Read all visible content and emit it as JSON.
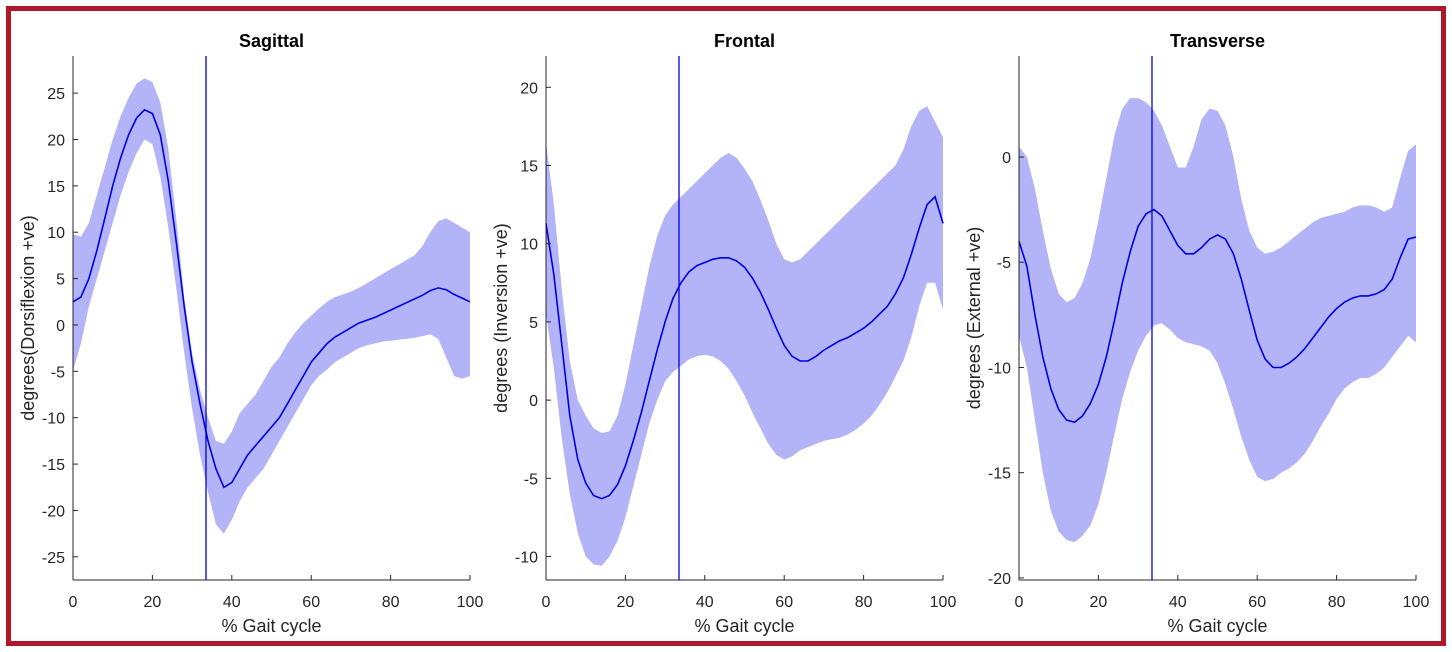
{
  "colors": {
    "frame": "#b0182a",
    "band": "#b3b3f8",
    "line": "#0000e0",
    "axis": "#262626"
  },
  "chart_data": [
    {
      "type": "line",
      "title": "Sagittal",
      "xlabel": "% Gait cycle",
      "ylabel": "degrees(Dorsiflexion +ve)",
      "xlim": [
        0,
        100
      ],
      "ylim": [
        -27.5,
        29
      ],
      "xticks": [
        0,
        20,
        40,
        60,
        80,
        100
      ],
      "yticks": [
        -25,
        -20,
        -15,
        -10,
        -5,
        0,
        5,
        10,
        15,
        20,
        25
      ],
      "vline": 33.5,
      "grid": false,
      "series": [
        {
          "x": [
            0,
            2,
            4,
            6,
            8,
            10,
            12,
            14,
            16,
            18,
            20,
            22,
            24,
            26,
            28,
            30,
            32,
            34,
            36,
            38,
            40,
            42,
            44,
            46,
            48,
            50,
            52,
            54,
            56,
            58,
            60,
            62,
            64,
            66,
            68,
            70,
            72,
            74,
            76,
            78,
            80,
            82,
            84,
            86,
            88,
            90,
            92,
            94,
            96,
            98,
            100
          ],
          "mean": [
            2.5,
            3.0,
            5.0,
            8.0,
            11.5,
            15.0,
            18.0,
            20.5,
            22.3,
            23.2,
            22.8,
            20.5,
            15.5,
            9.0,
            2.0,
            -4.0,
            -8.5,
            -12.5,
            -15.5,
            -17.5,
            -17.0,
            -15.5,
            -14.0,
            -13.0,
            -12.0,
            -11.0,
            -10.0,
            -8.5,
            -7.0,
            -5.5,
            -4.0,
            -3.0,
            -2.0,
            -1.3,
            -0.8,
            -0.3,
            0.2,
            0.5,
            0.8,
            1.2,
            1.6,
            2.0,
            2.4,
            2.8,
            3.2,
            3.7,
            4.0,
            3.8,
            3.3,
            2.9,
            2.5
          ],
          "upper": [
            9.8,
            9.5,
            11.0,
            14.0,
            17.0,
            20.0,
            22.5,
            24.5,
            26.0,
            26.6,
            26.2,
            24.0,
            19.0,
            11.5,
            3.0,
            -3.0,
            -7.0,
            -10.0,
            -12.5,
            -12.8,
            -11.5,
            -9.5,
            -8.5,
            -7.5,
            -6.0,
            -4.5,
            -3.5,
            -2.0,
            -0.8,
            0.2,
            1.0,
            1.8,
            2.5,
            3.0,
            3.3,
            3.6,
            4.0,
            4.5,
            5.0,
            5.5,
            6.0,
            6.5,
            7.0,
            7.5,
            8.5,
            10.0,
            11.2,
            11.5,
            11.0,
            10.5,
            10.0
          ],
          "lower": [
            -5.0,
            -2.0,
            2.0,
            5.0,
            8.0,
            11.0,
            14.0,
            16.5,
            18.5,
            20.0,
            19.5,
            16.0,
            10.5,
            4.0,
            -3.0,
            -9.0,
            -14.0,
            -18.0,
            -21.5,
            -22.5,
            -21.0,
            -19.0,
            -17.5,
            -16.5,
            -15.5,
            -14.0,
            -12.5,
            -11.0,
            -9.5,
            -8.0,
            -6.5,
            -5.5,
            -4.8,
            -4.0,
            -3.5,
            -3.0,
            -2.5,
            -2.2,
            -2.0,
            -1.8,
            -1.7,
            -1.6,
            -1.5,
            -1.4,
            -1.2,
            -1.0,
            -1.5,
            -3.5,
            -5.5,
            -5.8,
            -5.5
          ]
        }
      ]
    },
    {
      "type": "line",
      "title": "Frontal",
      "xlabel": "% Gait cycle",
      "ylabel": "degrees (Inversion +ve)",
      "xlim": [
        0,
        100
      ],
      "ylim": [
        -11.5,
        22
      ],
      "xticks": [
        0,
        20,
        40,
        60,
        80,
        100
      ],
      "yticks": [
        -10,
        -5,
        0,
        5,
        10,
        15,
        20
      ],
      "vline": 33.5,
      "grid": false,
      "series": [
        {
          "x": [
            0,
            2,
            4,
            6,
            8,
            10,
            12,
            14,
            16,
            18,
            20,
            22,
            24,
            26,
            28,
            30,
            32,
            34,
            36,
            38,
            40,
            42,
            44,
            46,
            48,
            50,
            52,
            54,
            56,
            58,
            60,
            62,
            64,
            66,
            68,
            70,
            72,
            74,
            76,
            78,
            80,
            82,
            84,
            86,
            88,
            90,
            92,
            94,
            96,
            98,
            100
          ],
          "mean": [
            11.3,
            8.0,
            3.5,
            -1.0,
            -3.8,
            -5.3,
            -6.1,
            -6.3,
            -6.1,
            -5.4,
            -4.2,
            -2.6,
            -0.8,
            1.2,
            3.2,
            5.0,
            6.5,
            7.5,
            8.2,
            8.6,
            8.8,
            9.0,
            9.1,
            9.1,
            8.9,
            8.5,
            7.8,
            6.9,
            5.8,
            4.6,
            3.5,
            2.8,
            2.5,
            2.5,
            2.8,
            3.2,
            3.5,
            3.8,
            4.0,
            4.3,
            4.6,
            5.0,
            5.5,
            6.0,
            6.8,
            7.8,
            9.3,
            11.0,
            12.5,
            13.0,
            11.3
          ],
          "upper": [
            16.5,
            12.5,
            7.0,
            2.5,
            0.0,
            -1.0,
            -1.8,
            -2.1,
            -2.0,
            -1.0,
            1.0,
            3.5,
            6.0,
            8.5,
            10.5,
            11.8,
            12.5,
            13.0,
            13.5,
            14.0,
            14.5,
            15.0,
            15.5,
            15.8,
            15.5,
            14.8,
            14.0,
            12.8,
            11.5,
            10.0,
            9.0,
            8.8,
            9.0,
            9.5,
            10.0,
            10.5,
            11.0,
            11.5,
            12.0,
            12.5,
            13.0,
            13.5,
            14.0,
            14.5,
            15.0,
            16.0,
            17.5,
            18.5,
            18.8,
            17.8,
            16.8
          ],
          "lower": [
            5.5,
            2.0,
            -2.5,
            -6.0,
            -8.5,
            -10.0,
            -10.5,
            -10.6,
            -10.0,
            -9.0,
            -7.5,
            -5.5,
            -3.5,
            -1.5,
            0.0,
            1.2,
            1.8,
            2.2,
            2.6,
            2.8,
            2.9,
            2.8,
            2.5,
            2.0,
            1.2,
            0.3,
            -0.8,
            -1.8,
            -2.8,
            -3.5,
            -3.8,
            -3.6,
            -3.2,
            -3.0,
            -2.8,
            -2.6,
            -2.5,
            -2.4,
            -2.2,
            -1.9,
            -1.5,
            -1.0,
            -0.3,
            0.5,
            1.5,
            2.5,
            4.0,
            6.0,
            7.5,
            7.5,
            5.8
          ]
        }
      ]
    },
    {
      "type": "line",
      "title": "Transverse",
      "xlabel": "% Gait cycle",
      "ylabel": "degrees (External +ve)",
      "xlim": [
        0,
        100
      ],
      "ylim": [
        -20.1,
        4.8
      ],
      "xticks": [
        0,
        20,
        40,
        60,
        80,
        100
      ],
      "yticks": [
        -20,
        -15,
        -10,
        -5,
        0
      ],
      "vline": 33.5,
      "grid": false,
      "series": [
        {
          "x": [
            0,
            2,
            4,
            6,
            8,
            10,
            12,
            14,
            16,
            18,
            20,
            22,
            24,
            26,
            28,
            30,
            32,
            34,
            36,
            38,
            40,
            42,
            44,
            46,
            48,
            50,
            52,
            54,
            56,
            58,
            60,
            62,
            64,
            66,
            68,
            70,
            72,
            74,
            76,
            78,
            80,
            82,
            84,
            86,
            88,
            90,
            92,
            94,
            96,
            98,
            100
          ],
          "mean": [
            -4.0,
            -5.2,
            -7.5,
            -9.5,
            -11.0,
            -12.0,
            -12.5,
            -12.6,
            -12.3,
            -11.7,
            -10.8,
            -9.5,
            -7.8,
            -6.0,
            -4.5,
            -3.3,
            -2.7,
            -2.5,
            -2.8,
            -3.5,
            -4.2,
            -4.6,
            -4.6,
            -4.3,
            -3.9,
            -3.7,
            -3.9,
            -4.6,
            -5.8,
            -7.3,
            -8.7,
            -9.6,
            -10.0,
            -10.0,
            -9.8,
            -9.5,
            -9.1,
            -8.6,
            -8.1,
            -7.6,
            -7.2,
            -6.9,
            -6.7,
            -6.6,
            -6.6,
            -6.5,
            -6.3,
            -5.8,
            -4.8,
            -3.9,
            -3.8
          ],
          "upper": [
            0.5,
            0.0,
            -1.5,
            -3.5,
            -5.3,
            -6.5,
            -6.9,
            -6.7,
            -6.0,
            -4.8,
            -3.0,
            -1.0,
            1.0,
            2.3,
            2.8,
            2.8,
            2.6,
            2.2,
            1.5,
            0.5,
            -0.5,
            -0.5,
            0.5,
            1.8,
            2.3,
            2.2,
            1.5,
            0.0,
            -2.0,
            -3.5,
            -4.3,
            -4.6,
            -4.5,
            -4.3,
            -4.0,
            -3.7,
            -3.4,
            -3.1,
            -2.9,
            -2.8,
            -2.7,
            -2.6,
            -2.4,
            -2.3,
            -2.3,
            -2.4,
            -2.6,
            -2.4,
            -1.0,
            0.3,
            0.6
          ],
          "lower": [
            -8.5,
            -10.0,
            -12.5,
            -15.0,
            -16.8,
            -17.8,
            -18.2,
            -18.3,
            -18.0,
            -17.5,
            -16.5,
            -15.0,
            -13.2,
            -11.5,
            -10.2,
            -9.2,
            -8.5,
            -8.0,
            -7.9,
            -8.2,
            -8.6,
            -8.8,
            -8.9,
            -9.0,
            -9.2,
            -9.8,
            -10.8,
            -12.0,
            -13.3,
            -14.4,
            -15.2,
            -15.4,
            -15.3,
            -15.0,
            -14.8,
            -14.5,
            -14.1,
            -13.5,
            -12.8,
            -12.2,
            -11.5,
            -11.0,
            -10.7,
            -10.5,
            -10.5,
            -10.3,
            -10.0,
            -9.5,
            -9.0,
            -8.5,
            -8.8
          ]
        }
      ]
    }
  ]
}
